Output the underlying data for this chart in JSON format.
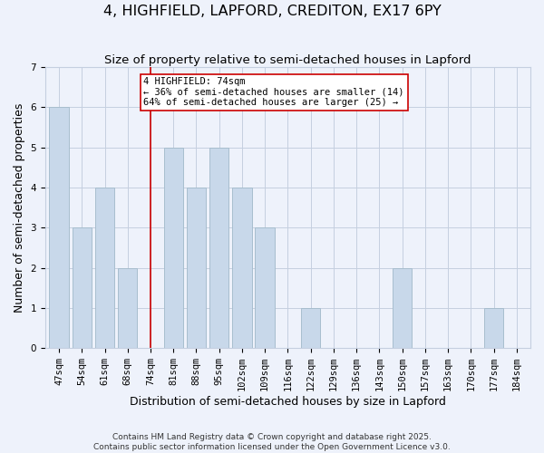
{
  "title": "4, HIGHFIELD, LAPFORD, CREDITON, EX17 6PY",
  "subtitle": "Size of property relative to semi-detached houses in Lapford",
  "xlabel": "Distribution of semi-detached houses by size in Lapford",
  "ylabel": "Number of semi-detached properties",
  "bin_labels": [
    "47sqm",
    "54sqm",
    "61sqm",
    "68sqm",
    "74sqm",
    "81sqm",
    "88sqm",
    "95sqm",
    "102sqm",
    "109sqm",
    "116sqm",
    "122sqm",
    "129sqm",
    "136sqm",
    "143sqm",
    "150sqm",
    "157sqm",
    "163sqm",
    "170sqm",
    "177sqm",
    "184sqm"
  ],
  "bar_values": [
    6,
    3,
    4,
    2,
    0,
    5,
    4,
    5,
    4,
    3,
    0,
    1,
    0,
    0,
    0,
    2,
    0,
    0,
    0,
    1,
    0
  ],
  "bar_color": "#c8d8ea",
  "bar_edgecolor": "#a8bece",
  "highlight_index": 4,
  "highlight_line_color": "#cc0000",
  "highlight_label": "4 HIGHFIELD: 74sqm",
  "annotation_line1": "← 36% of semi-detached houses are smaller (14)",
  "annotation_line2": "64% of semi-detached houses are larger (25) →",
  "ylim": [
    0,
    7
  ],
  "yticks": [
    0,
    1,
    2,
    3,
    4,
    5,
    6,
    7
  ],
  "footer1": "Contains HM Land Registry data © Crown copyright and database right 2025.",
  "footer2": "Contains public sector information licensed under the Open Government Licence v3.0.",
  "background_color": "#eef2fb",
  "grid_color": "#c5cfe0",
  "title_fontsize": 11.5,
  "subtitle_fontsize": 9.5,
  "axis_label_fontsize": 9,
  "tick_fontsize": 7.5,
  "footer_fontsize": 6.5
}
